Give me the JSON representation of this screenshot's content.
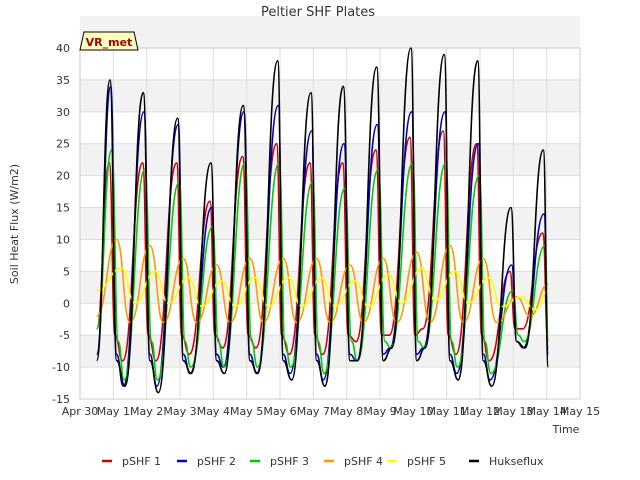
{
  "chart_data": {
    "type": "line",
    "title": "Peltier SHF Plates",
    "xlabel": "Time",
    "ylabel": "Soil Heat Flux (W/m2)",
    "badge": "VR_met",
    "ylim": [
      -15,
      40
    ],
    "xlim": [
      0,
      15
    ],
    "y_ticks": [
      -15,
      -10,
      -5,
      0,
      5,
      10,
      15,
      20,
      25,
      30,
      35,
      40
    ],
    "x_ticks": [
      {
        "value": 0,
        "label": "Apr 30"
      },
      {
        "value": 1,
        "label": "May 1"
      },
      {
        "value": 2,
        "label": "May 2"
      },
      {
        "value": 3,
        "label": "May 3"
      },
      {
        "value": 4,
        "label": "May 4"
      },
      {
        "value": 5,
        "label": "May 5"
      },
      {
        "value": 6,
        "label": "May 6"
      },
      {
        "value": 7,
        "label": "May 7"
      },
      {
        "value": 8,
        "label": "May 8"
      },
      {
        "value": 9,
        "label": "May 9"
      },
      {
        "value": 10,
        "label": "May 10"
      },
      {
        "value": 11,
        "label": "May 11"
      },
      {
        "value": 12,
        "label": "May 12"
      },
      {
        "value": 13,
        "label": "May 13"
      },
      {
        "value": 14,
        "label": "May 14"
      },
      {
        "value": 15,
        "label": "May 15"
      }
    ],
    "colors": {
      "background_band": "#f2f2f2",
      "grid": "#dddddd",
      "axis": "#cccccc",
      "badge_fill": "#ffffc0"
    },
    "series": [
      {
        "name": "pSHF 1",
        "color": "#cc0000",
        "x": [
          0.5,
          0.88,
          1.05,
          1.28,
          1.88,
          2.05,
          2.28,
          2.9,
          3.05,
          3.28,
          3.9,
          4.05,
          4.28,
          4.88,
          5.05,
          5.28,
          5.9,
          6.05,
          6.28,
          6.9,
          7.05,
          7.28,
          7.88,
          8.05,
          8.28,
          8.88,
          9.05,
          9.28,
          9.9,
          10.05,
          10.28,
          10.9,
          11.05,
          11.28,
          11.9,
          12.05,
          12.28,
          12.9,
          13.05,
          13.28,
          13.88,
          14.05
        ],
        "y": [
          -4,
          22,
          -5,
          -9,
          22,
          -5,
          -9,
          22,
          -5,
          -8,
          16,
          -5,
          -7,
          23,
          -5,
          -7,
          25,
          -5,
          -8,
          22,
          -5,
          -8,
          22,
          -5,
          -6,
          24,
          -5,
          -5,
          26,
          -5,
          -4,
          27,
          -5,
          -8,
          25,
          -5,
          -9,
          5,
          -4,
          -4,
          11,
          -7
        ]
      },
      {
        "name": "pSHF 2",
        "color": "#0000cc",
        "x": [
          0.5,
          0.92,
          1.1,
          1.3,
          1.92,
          2.1,
          2.3,
          2.95,
          3.1,
          3.3,
          3.95,
          4.1,
          4.3,
          4.92,
          5.1,
          5.3,
          5.95,
          6.1,
          6.3,
          6.95,
          7.1,
          7.3,
          7.92,
          8.1,
          8.3,
          8.92,
          9.1,
          9.3,
          9.95,
          10.1,
          10.3,
          10.95,
          11.1,
          11.3,
          11.95,
          12.1,
          12.3,
          12.95,
          13.1,
          13.3,
          13.92,
          14.05
        ],
        "y": [
          -8,
          34,
          -8,
          -13,
          30,
          -8,
          -13,
          28,
          -8,
          -11,
          15,
          -8,
          -10,
          30,
          -8,
          -11,
          31,
          -8,
          -11,
          27,
          -8,
          -12,
          25,
          -8,
          -9,
          28,
          -8,
          -7,
          30,
          -8,
          -7,
          30,
          -8,
          -11,
          25,
          -8,
          -12,
          6,
          -6,
          -7,
          14,
          -8
        ]
      },
      {
        "name": "pSHF 3",
        "color": "#00cc00",
        "x": [
          0.5,
          0.95,
          1.15,
          1.32,
          1.95,
          2.15,
          2.32,
          2.98,
          3.15,
          3.32,
          3.98,
          4.15,
          4.32,
          4.95,
          5.15,
          5.32,
          5.98,
          6.15,
          6.32,
          6.98,
          7.15,
          7.32,
          7.95,
          8.15,
          8.32,
          8.95,
          9.15,
          9.32,
          9.98,
          10.15,
          10.32,
          10.98,
          11.15,
          11.32,
          11.98,
          12.15,
          12.32,
          12.98,
          13.15,
          13.32,
          13.95,
          14.05
        ],
        "y": [
          -4,
          24,
          -6,
          -12,
          21,
          -6,
          -12,
          19,
          -6,
          -10,
          12,
          -6,
          -10,
          22,
          -6,
          -10,
          22,
          -6,
          -10,
          19,
          -6,
          -11,
          18,
          -6,
          -9,
          21,
          -6,
          -7,
          22,
          -6,
          -7,
          22,
          -6,
          -10,
          20,
          -6,
          -11,
          2,
          -5,
          -6,
          9,
          -6
        ]
      },
      {
        "name": "pSHF 4",
        "color": "#ff9900",
        "x": [
          0.5,
          1.1,
          1.5,
          2.1,
          2.5,
          3.1,
          3.5,
          4.1,
          4.5,
          5.1,
          5.5,
          6.1,
          6.5,
          7.1,
          7.5,
          8.1,
          8.5,
          9.1,
          9.5,
          10.1,
          10.5,
          11.1,
          11.5,
          12.1,
          12.5,
          13.1,
          13.5,
          14.05
        ],
        "y": [
          -2,
          10,
          -3,
          9,
          -3,
          7,
          -3,
          6,
          -3,
          7,
          -3,
          7,
          -3,
          7,
          -3,
          6,
          -3,
          7,
          -3,
          8,
          -3,
          9,
          -3,
          7,
          -3,
          1,
          -2,
          3
        ]
      },
      {
        "name": "pSHF 5",
        "color": "#ffff00",
        "x": [
          0.5,
          1.25,
          1.65,
          2.25,
          2.65,
          3.25,
          3.65,
          4.25,
          4.65,
          5.25,
          5.65,
          6.25,
          6.65,
          7.25,
          7.65,
          8.25,
          8.65,
          9.25,
          9.65,
          10.25,
          10.65,
          11.25,
          11.65,
          12.25,
          12.65,
          13.25,
          13.65,
          14.05
        ],
        "y": [
          2,
          5.5,
          0,
          5,
          0,
          4,
          -0.5,
          3.5,
          -0.5,
          4,
          -0.5,
          4,
          -0.5,
          4,
          -0.5,
          3.5,
          -0.5,
          4.5,
          0,
          5.5,
          0.5,
          5,
          0,
          4,
          -0.5,
          1,
          -1,
          2
        ]
      },
      {
        "name": "Hukseflux",
        "color": "#000000",
        "x": [
          0.5,
          0.9,
          1.1,
          1.35,
          1.9,
          2.1,
          2.35,
          2.93,
          3.1,
          3.33,
          3.93,
          4.1,
          4.33,
          4.9,
          5.1,
          5.33,
          5.93,
          6.1,
          6.35,
          6.93,
          7.1,
          7.35,
          7.9,
          8.1,
          8.33,
          8.9,
          9.1,
          9.35,
          9.93,
          10.1,
          10.35,
          10.93,
          11.1,
          11.35,
          11.93,
          12.1,
          12.35,
          12.93,
          13.1,
          13.35,
          13.9,
          14.05
        ],
        "y": [
          -9,
          35,
          -9,
          -13,
          33,
          -9,
          -14,
          29,
          -9,
          -11,
          22,
          -9,
          -11,
          31,
          -9,
          -11,
          38,
          -9,
          -12,
          33,
          -9,
          -13,
          34,
          -9,
          -9,
          37,
          -9,
          -7,
          40,
          -9,
          -7,
          39,
          -9,
          -12,
          38,
          -9,
          -13,
          15,
          -6,
          -7,
          24,
          -10
        ]
      }
    ]
  }
}
